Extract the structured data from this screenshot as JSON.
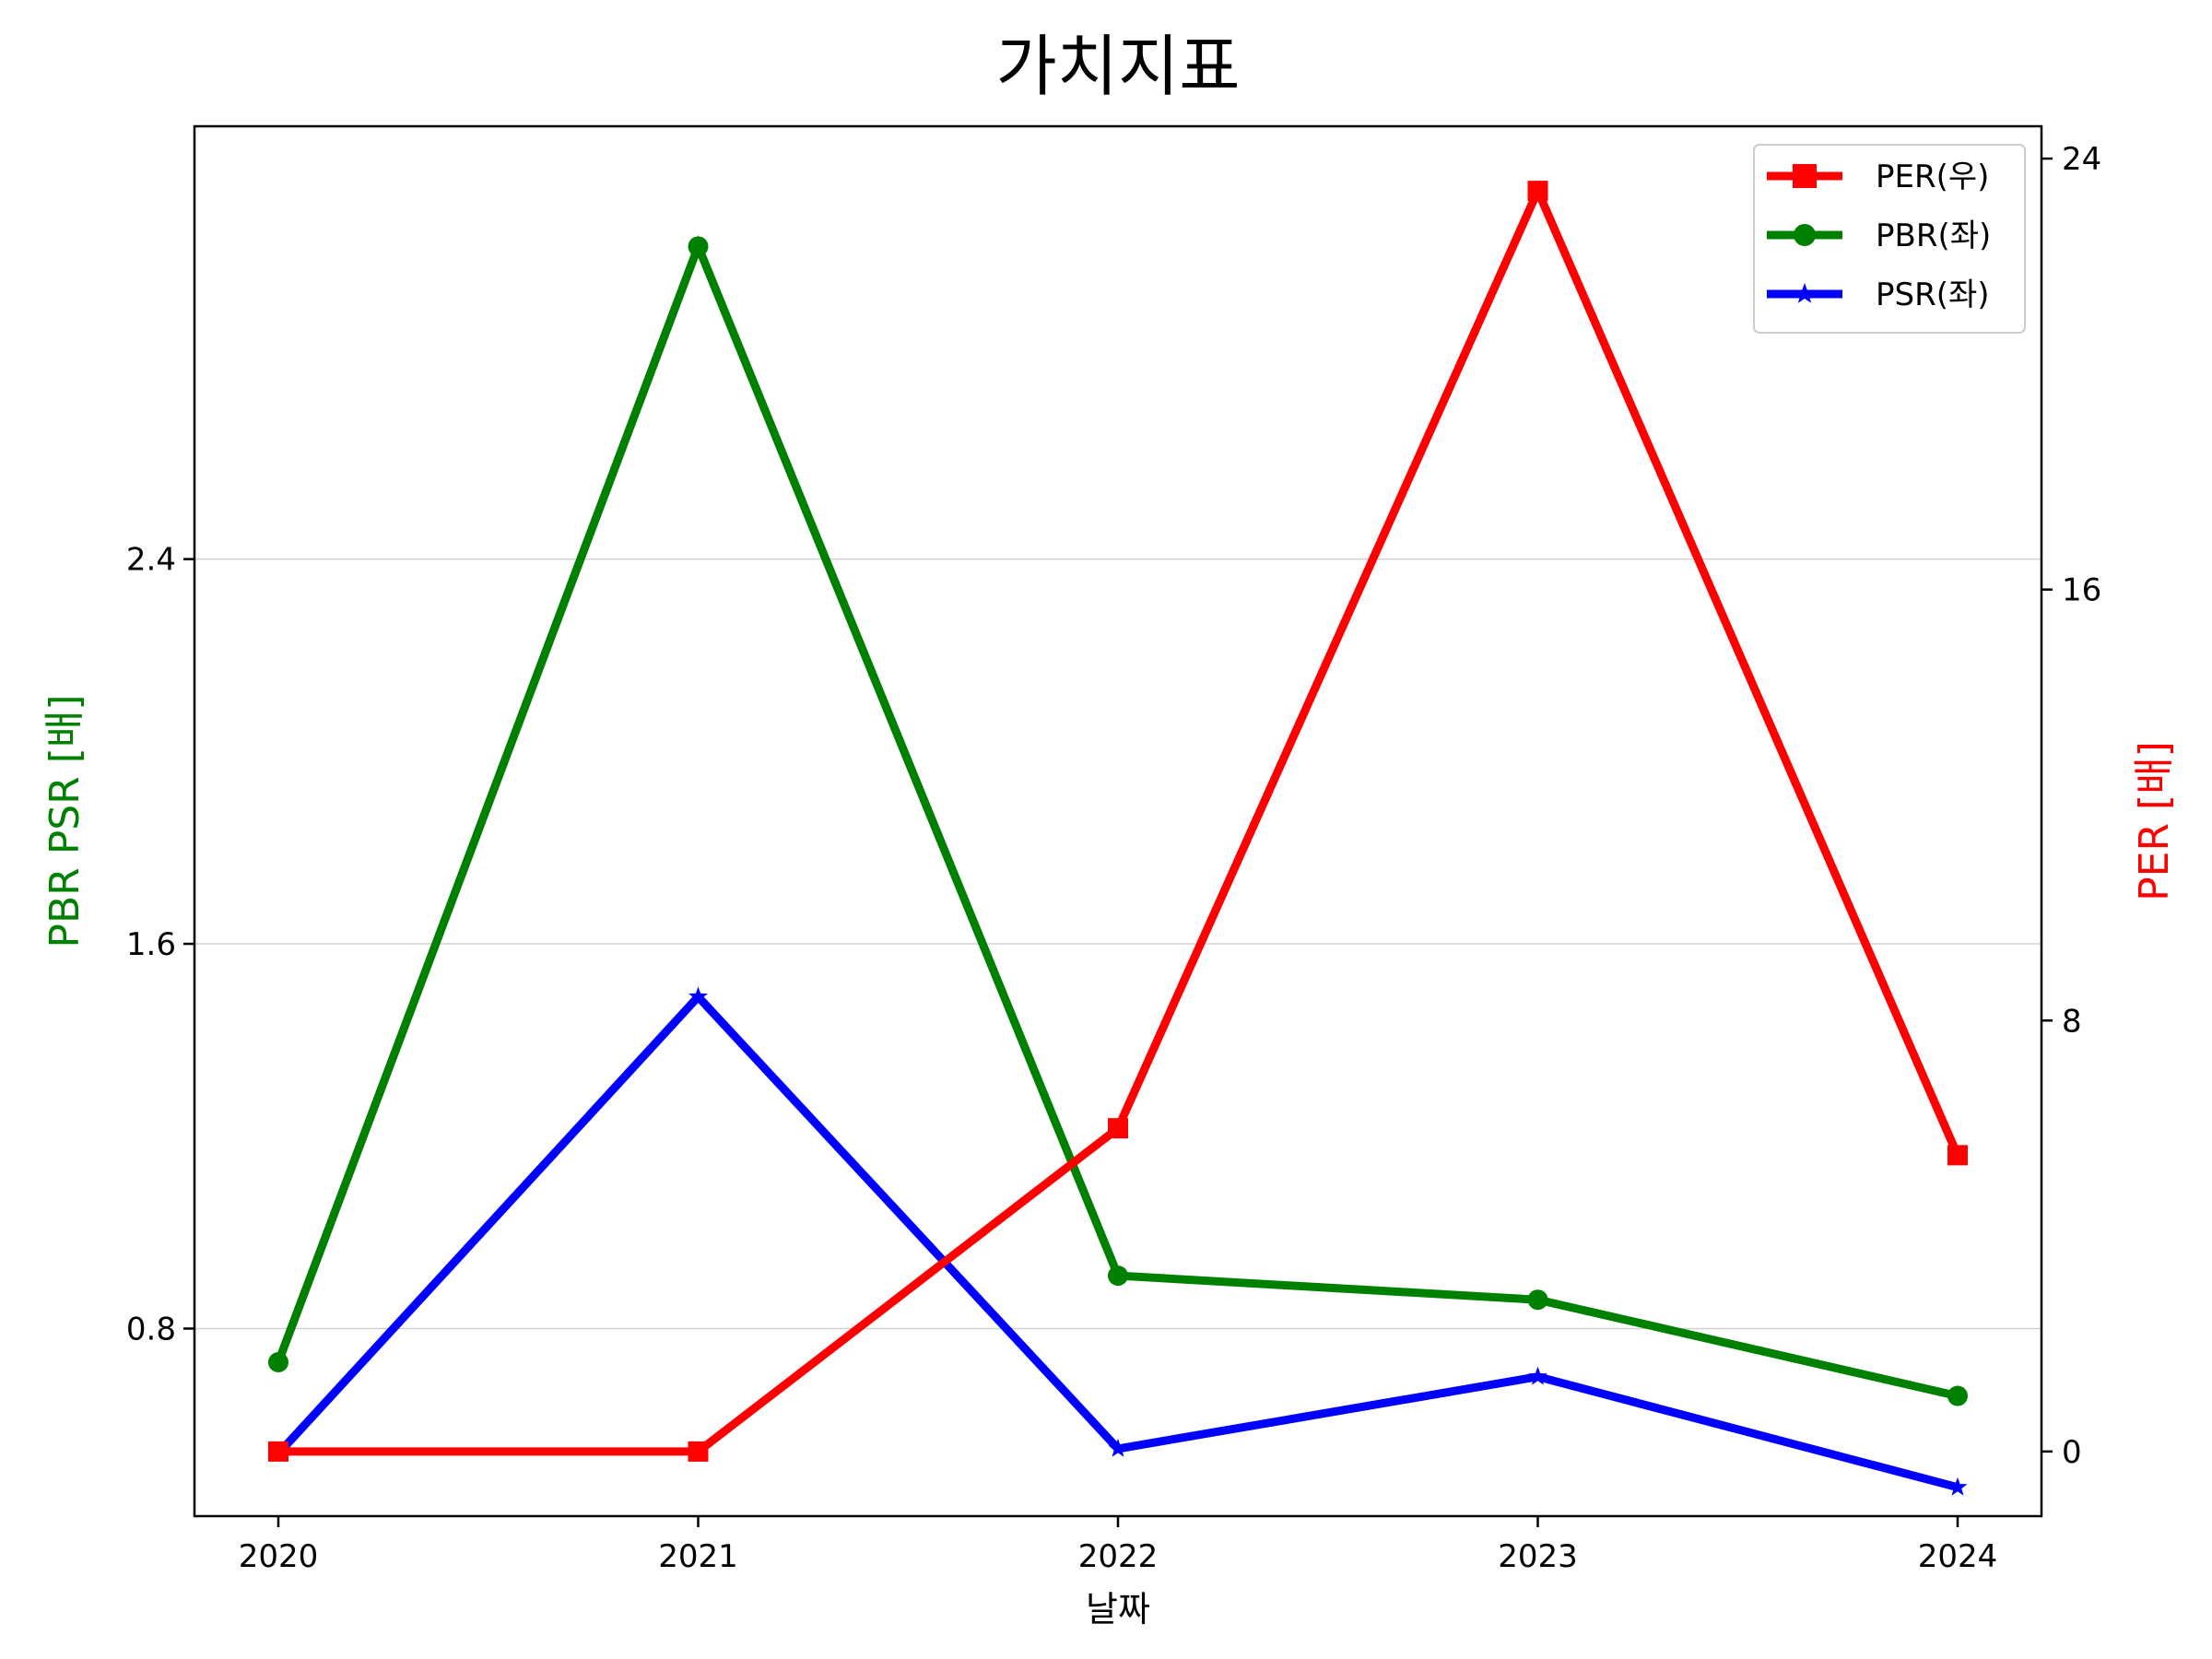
{
  "chart_data": {
    "type": "line",
    "title": "가치지표",
    "xlabel": "날짜",
    "ylabel_left": "PBR PSR [배]",
    "ylabel_right": "PER [배]",
    "x": [
      "2020",
      "2021",
      "2022",
      "2023",
      "2024"
    ],
    "left_axis": {
      "ylim": [
        0.41,
        3.3
      ],
      "ticks": [
        "0.8",
        "1.6",
        "2.4"
      ],
      "grid": true
    },
    "right_axis": {
      "ylim": [
        -1.2,
        24.6
      ],
      "ticks": [
        "0",
        "8",
        "16",
        "24"
      ]
    },
    "series": [
      {
        "name": "PER(우)",
        "axis": "right",
        "color": "#ff0000",
        "marker": "square",
        "values": [
          0.0,
          0.0,
          6.0,
          23.4,
          5.5
        ]
      },
      {
        "name": "PBR(좌)",
        "axis": "left",
        "color": "#008000",
        "marker": "circle",
        "values": [
          0.73,
          3.05,
          0.91,
          0.86,
          0.66
        ]
      },
      {
        "name": "PSR(좌)",
        "axis": "left",
        "color": "#0000ff",
        "marker": "star",
        "values": [
          0.54,
          1.49,
          0.55,
          0.7,
          0.47
        ]
      }
    ],
    "legend_position": "top-right"
  }
}
